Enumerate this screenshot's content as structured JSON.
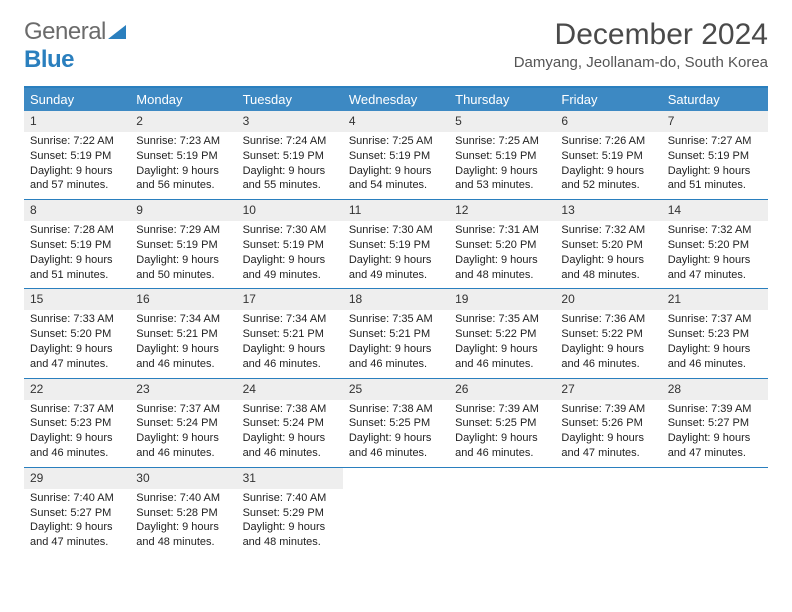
{
  "logo": {
    "text1": "General",
    "text2": "Blue"
  },
  "title": "December 2024",
  "location": "Damyang, Jeollanam-do, South Korea",
  "colors": {
    "brand_blue": "#2a7fbe",
    "header_bg": "#3d89c3",
    "logo_gray": "#6b6b6b",
    "daynum_bg": "#eeeeee",
    "text": "#202020"
  },
  "weekdays": [
    "Sunday",
    "Monday",
    "Tuesday",
    "Wednesday",
    "Thursday",
    "Friday",
    "Saturday"
  ],
  "weeks": [
    [
      {
        "n": "1",
        "sr": "Sunrise: 7:22 AM",
        "ss": "Sunset: 5:19 PM",
        "dl": "Daylight: 9 hours and 57 minutes."
      },
      {
        "n": "2",
        "sr": "Sunrise: 7:23 AM",
        "ss": "Sunset: 5:19 PM",
        "dl": "Daylight: 9 hours and 56 minutes."
      },
      {
        "n": "3",
        "sr": "Sunrise: 7:24 AM",
        "ss": "Sunset: 5:19 PM",
        "dl": "Daylight: 9 hours and 55 minutes."
      },
      {
        "n": "4",
        "sr": "Sunrise: 7:25 AM",
        "ss": "Sunset: 5:19 PM",
        "dl": "Daylight: 9 hours and 54 minutes."
      },
      {
        "n": "5",
        "sr": "Sunrise: 7:25 AM",
        "ss": "Sunset: 5:19 PM",
        "dl": "Daylight: 9 hours and 53 minutes."
      },
      {
        "n": "6",
        "sr": "Sunrise: 7:26 AM",
        "ss": "Sunset: 5:19 PM",
        "dl": "Daylight: 9 hours and 52 minutes."
      },
      {
        "n": "7",
        "sr": "Sunrise: 7:27 AM",
        "ss": "Sunset: 5:19 PM",
        "dl": "Daylight: 9 hours and 51 minutes."
      }
    ],
    [
      {
        "n": "8",
        "sr": "Sunrise: 7:28 AM",
        "ss": "Sunset: 5:19 PM",
        "dl": "Daylight: 9 hours and 51 minutes."
      },
      {
        "n": "9",
        "sr": "Sunrise: 7:29 AM",
        "ss": "Sunset: 5:19 PM",
        "dl": "Daylight: 9 hours and 50 minutes."
      },
      {
        "n": "10",
        "sr": "Sunrise: 7:30 AM",
        "ss": "Sunset: 5:19 PM",
        "dl": "Daylight: 9 hours and 49 minutes."
      },
      {
        "n": "11",
        "sr": "Sunrise: 7:30 AM",
        "ss": "Sunset: 5:19 PM",
        "dl": "Daylight: 9 hours and 49 minutes."
      },
      {
        "n": "12",
        "sr": "Sunrise: 7:31 AM",
        "ss": "Sunset: 5:20 PM",
        "dl": "Daylight: 9 hours and 48 minutes."
      },
      {
        "n": "13",
        "sr": "Sunrise: 7:32 AM",
        "ss": "Sunset: 5:20 PM",
        "dl": "Daylight: 9 hours and 48 minutes."
      },
      {
        "n": "14",
        "sr": "Sunrise: 7:32 AM",
        "ss": "Sunset: 5:20 PM",
        "dl": "Daylight: 9 hours and 47 minutes."
      }
    ],
    [
      {
        "n": "15",
        "sr": "Sunrise: 7:33 AM",
        "ss": "Sunset: 5:20 PM",
        "dl": "Daylight: 9 hours and 47 minutes."
      },
      {
        "n": "16",
        "sr": "Sunrise: 7:34 AM",
        "ss": "Sunset: 5:21 PM",
        "dl": "Daylight: 9 hours and 46 minutes."
      },
      {
        "n": "17",
        "sr": "Sunrise: 7:34 AM",
        "ss": "Sunset: 5:21 PM",
        "dl": "Daylight: 9 hours and 46 minutes."
      },
      {
        "n": "18",
        "sr": "Sunrise: 7:35 AM",
        "ss": "Sunset: 5:21 PM",
        "dl": "Daylight: 9 hours and 46 minutes."
      },
      {
        "n": "19",
        "sr": "Sunrise: 7:35 AM",
        "ss": "Sunset: 5:22 PM",
        "dl": "Daylight: 9 hours and 46 minutes."
      },
      {
        "n": "20",
        "sr": "Sunrise: 7:36 AM",
        "ss": "Sunset: 5:22 PM",
        "dl": "Daylight: 9 hours and 46 minutes."
      },
      {
        "n": "21",
        "sr": "Sunrise: 7:37 AM",
        "ss": "Sunset: 5:23 PM",
        "dl": "Daylight: 9 hours and 46 minutes."
      }
    ],
    [
      {
        "n": "22",
        "sr": "Sunrise: 7:37 AM",
        "ss": "Sunset: 5:23 PM",
        "dl": "Daylight: 9 hours and 46 minutes."
      },
      {
        "n": "23",
        "sr": "Sunrise: 7:37 AM",
        "ss": "Sunset: 5:24 PM",
        "dl": "Daylight: 9 hours and 46 minutes."
      },
      {
        "n": "24",
        "sr": "Sunrise: 7:38 AM",
        "ss": "Sunset: 5:24 PM",
        "dl": "Daylight: 9 hours and 46 minutes."
      },
      {
        "n": "25",
        "sr": "Sunrise: 7:38 AM",
        "ss": "Sunset: 5:25 PM",
        "dl": "Daylight: 9 hours and 46 minutes."
      },
      {
        "n": "26",
        "sr": "Sunrise: 7:39 AM",
        "ss": "Sunset: 5:25 PM",
        "dl": "Daylight: 9 hours and 46 minutes."
      },
      {
        "n": "27",
        "sr": "Sunrise: 7:39 AM",
        "ss": "Sunset: 5:26 PM",
        "dl": "Daylight: 9 hours and 47 minutes."
      },
      {
        "n": "28",
        "sr": "Sunrise: 7:39 AM",
        "ss": "Sunset: 5:27 PM",
        "dl": "Daylight: 9 hours and 47 minutes."
      }
    ],
    [
      {
        "n": "29",
        "sr": "Sunrise: 7:40 AM",
        "ss": "Sunset: 5:27 PM",
        "dl": "Daylight: 9 hours and 47 minutes."
      },
      {
        "n": "30",
        "sr": "Sunrise: 7:40 AM",
        "ss": "Sunset: 5:28 PM",
        "dl": "Daylight: 9 hours and 48 minutes."
      },
      {
        "n": "31",
        "sr": "Sunrise: 7:40 AM",
        "ss": "Sunset: 5:29 PM",
        "dl": "Daylight: 9 hours and 48 minutes."
      },
      {
        "empty": true
      },
      {
        "empty": true
      },
      {
        "empty": true
      },
      {
        "empty": true
      }
    ]
  ]
}
